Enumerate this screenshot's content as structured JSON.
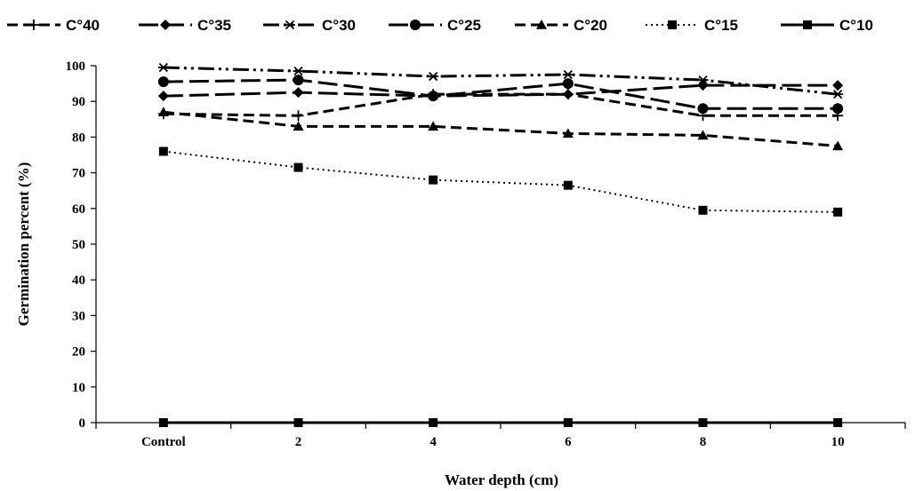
{
  "chart_data": {
    "type": "line",
    "title": "",
    "xlabel": "Water depth (cm)",
    "ylabel": "Germination percent (%)",
    "categories": [
      "Control",
      "2",
      "4",
      "6",
      "8",
      "10"
    ],
    "yticks": [
      "0",
      "10",
      "20",
      "30",
      "40",
      "50",
      "60",
      "70",
      "80",
      "90",
      "100"
    ],
    "ylim": [
      0,
      100
    ],
    "grid": false,
    "legend_position": "top",
    "series": [
      {
        "name": "C°40",
        "marker": "plus",
        "dash": "dash",
        "values": [
          86.5,
          86,
          92,
          92,
          86,
          86
        ]
      },
      {
        "name": "C°35",
        "marker": "diamond",
        "dash": "longdash",
        "values": [
          91.5,
          92.5,
          91.5,
          92,
          94.5,
          94.5
        ]
      },
      {
        "name": "C°30",
        "marker": "star",
        "dash": "dashdotdot",
        "values": [
          99.5,
          98.5,
          97,
          97.5,
          96,
          92
        ]
      },
      {
        "name": "C°25",
        "marker": "circle",
        "dash": "longdash",
        "values": [
          95.5,
          96,
          91.5,
          95,
          88,
          88
        ]
      },
      {
        "name": "C°20",
        "marker": "triangle",
        "dash": "dash",
        "values": [
          87,
          83,
          83,
          81,
          80.5,
          77.5
        ]
      },
      {
        "name": "C°15",
        "marker": "square",
        "dash": "dot",
        "values": [
          76,
          71.5,
          68,
          66.5,
          59.5,
          59
        ]
      },
      {
        "name": "C°10",
        "marker": "square",
        "dash": "solid",
        "values": [
          0,
          0,
          0,
          0,
          0,
          0
        ]
      }
    ]
  }
}
